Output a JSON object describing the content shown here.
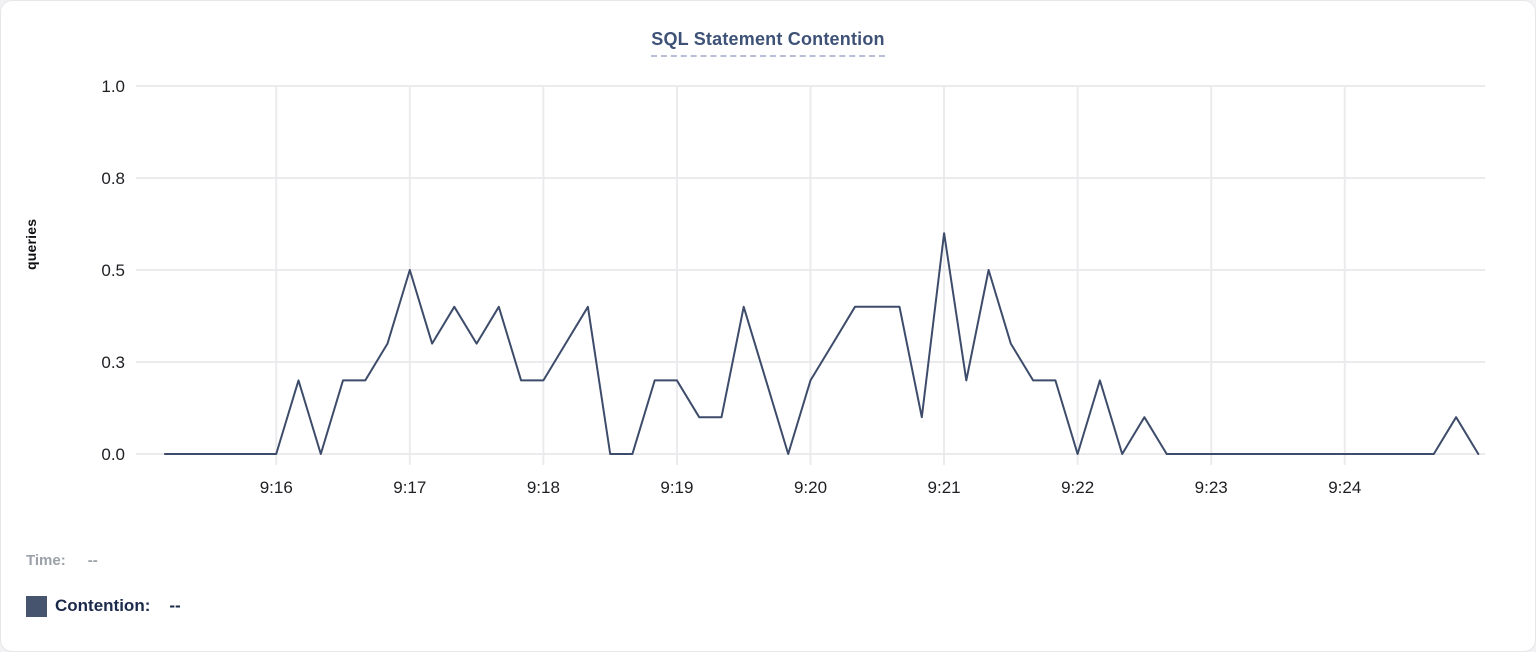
{
  "title": "SQL Statement Contention",
  "legend": {
    "time_label": "Time:",
    "time_value": "--",
    "contention_label": "Contention:",
    "contention_value": "--",
    "swatch_color": "#46546e"
  },
  "colors": {
    "line": "#3d4c6a",
    "grid": "#ebebed",
    "tick_text": "#1d1f23",
    "title_text": "#3e5277",
    "title_underline": "#b8bed8"
  },
  "chart_data": {
    "type": "line",
    "title": "SQL Statement Contention",
    "xlabel": "",
    "ylabel": "queries",
    "legend_position": "bottom-left",
    "grid": true,
    "ylim": [
      0,
      1
    ],
    "x_domain": [
      "9:14:57",
      "9:25:03"
    ],
    "y_ticks": [
      {
        "value": 0,
        "label": "0.0"
      },
      {
        "value": 0.25,
        "label": "0.3"
      },
      {
        "value": 0.5,
        "label": "0.5"
      },
      {
        "value": 0.75,
        "label": "0.8"
      },
      {
        "value": 1,
        "label": "1.0"
      }
    ],
    "x_ticks": [
      "9:16",
      "9:17",
      "9:18",
      "9:19",
      "9:20",
      "9:21",
      "9:22",
      "9:23",
      "9:24"
    ],
    "series": [
      {
        "name": "Contention",
        "unit": "queries",
        "times": [
          "9:15:10",
          "9:15:20",
          "9:15:30",
          "9:15:40",
          "9:15:50",
          "9:16:00",
          "9:16:10",
          "9:16:20",
          "9:16:30",
          "9:16:40",
          "9:16:50",
          "9:17:00",
          "9:17:10",
          "9:17:20",
          "9:17:30",
          "9:17:40",
          "9:17:50",
          "9:18:00",
          "9:18:10",
          "9:18:20",
          "9:18:30",
          "9:18:40",
          "9:18:50",
          "9:19:00",
          "9:19:10",
          "9:19:20",
          "9:19:30",
          "9:19:40",
          "9:19:50",
          "9:20:00",
          "9:20:10",
          "9:20:20",
          "9:20:30",
          "9:20:40",
          "9:20:50",
          "9:21:00",
          "9:21:10",
          "9:21:20",
          "9:21:30",
          "9:21:40",
          "9:21:50",
          "9:22:00",
          "9:22:10",
          "9:22:20",
          "9:22:30",
          "9:22:40",
          "9:22:50",
          "9:23:00",
          "9:23:10",
          "9:23:20",
          "9:23:30",
          "9:23:40",
          "9:23:50",
          "9:24:00",
          "9:24:10",
          "9:24:20",
          "9:24:30",
          "9:24:40",
          "9:24:50",
          "9:25:00"
        ],
        "values": [
          0,
          0,
          0,
          0,
          0,
          0,
          0.2,
          0,
          0.2,
          0.2,
          0.3,
          0.5,
          0.3,
          0.4,
          0.3,
          0.4,
          0.2,
          0.2,
          0.3,
          0.4,
          0,
          0,
          0.2,
          0.2,
          0.1,
          0.1,
          0.4,
          0.2,
          0,
          0.2,
          0.3,
          0.4,
          0.4,
          0.4,
          0.1,
          0.6,
          0.2,
          0.5,
          0.3,
          0.2,
          0.2,
          0,
          0.2,
          0,
          0.1,
          0,
          0,
          0,
          0,
          0,
          0,
          0,
          0,
          0,
          0,
          0,
          0,
          0,
          0.1,
          0
        ]
      }
    ]
  }
}
